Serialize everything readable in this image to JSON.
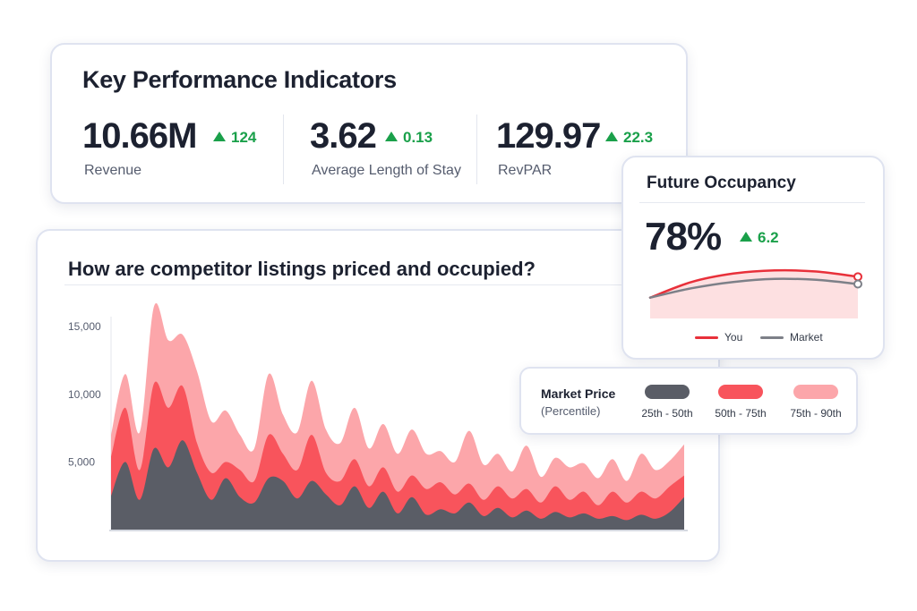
{
  "kpi_card": {
    "title": "Key Performance Indicators",
    "metrics": [
      {
        "value": "10.66M",
        "delta": "124",
        "label": "Revenue"
      },
      {
        "value": "3.62",
        "delta": "0.13",
        "label": "Average Length of Stay"
      },
      {
        "value": "129.97",
        "delta": "22.3",
        "label": "RevPAR"
      }
    ]
  },
  "occupancy_card": {
    "title": "Future Occupancy",
    "value": "78%",
    "delta": "6.2",
    "legend": [
      {
        "label": "You",
        "color": "#e8303a"
      },
      {
        "label": "Market",
        "color": "#7d8088"
      }
    ]
  },
  "legend_card": {
    "title": "Market Price",
    "subtitle": "(Percentile)",
    "items": [
      {
        "label": "25th - 50th",
        "color": "#5a5d66"
      },
      {
        "label": "50th - 75th",
        "color": "#f8545c"
      },
      {
        "label": "75th - 90th",
        "color": "#fca6aa"
      }
    ]
  },
  "chart_data": [
    {
      "type": "area",
      "title": "How are competitor listings priced and occupied?",
      "ylim": [
        0,
        16000
      ],
      "yticks": [
        "15,000",
        "10,000",
        "5,000"
      ],
      "ytick_values": [
        15000,
        10000,
        5000
      ],
      "grid": false,
      "series": [
        {
          "name": "25th - 50th",
          "color": "#5a5d66",
          "values": [
            2500,
            5000,
            2200,
            6000,
            4600,
            6600,
            4200,
            2200,
            3800,
            2400,
            2000,
            3800,
            3600,
            2300,
            3600,
            2600,
            1800,
            3200,
            1600,
            2800,
            1200,
            2400,
            1100,
            1500,
            1200,
            2000,
            1000,
            1600,
            900,
            1400,
            800,
            1300,
            900,
            1200,
            800,
            1000,
            700,
            1100,
            800,
            1300,
            2400
          ]
        },
        {
          "name": "50th - 75th",
          "color": "#f8545c",
          "values": [
            5400,
            9000,
            4400,
            10800,
            9000,
            10600,
            6400,
            4200,
            5000,
            4400,
            3600,
            7000,
            5600,
            4400,
            7000,
            4200,
            3600,
            5200,
            3200,
            4600,
            2800,
            4000,
            3000,
            3500,
            2600,
            3400,
            2200,
            3200,
            2300,
            3000,
            2000,
            3200,
            2200,
            2800,
            1800,
            2800,
            2000,
            2800,
            2300,
            3200,
            4000
          ]
        },
        {
          "name": "75th - 90th",
          "color": "#fca6aa",
          "values": [
            7000,
            11500,
            7200,
            16500,
            14000,
            14400,
            11700,
            8000,
            8800,
            7000,
            6000,
            11500,
            8500,
            7200,
            11000,
            7400,
            6400,
            9000,
            6000,
            7800,
            5600,
            7400,
            5600,
            5800,
            5000,
            7300,
            4800,
            5600,
            4300,
            6200,
            3900,
            5300,
            4600,
            4900,
            3800,
            5200,
            3600,
            5600,
            4400,
            5100,
            6300
          ]
        }
      ]
    },
    {
      "type": "line",
      "title": "",
      "ylim": [
        40,
        100
      ],
      "grid": false,
      "series": [
        {
          "name": "You",
          "color": "#e8303a",
          "values": [
            60,
            75,
            83,
            86,
            85,
            80
          ]
        },
        {
          "name": "Market",
          "color": "#7d8088",
          "values": [
            60,
            69,
            75,
            78,
            77,
            73
          ]
        }
      ]
    }
  ]
}
